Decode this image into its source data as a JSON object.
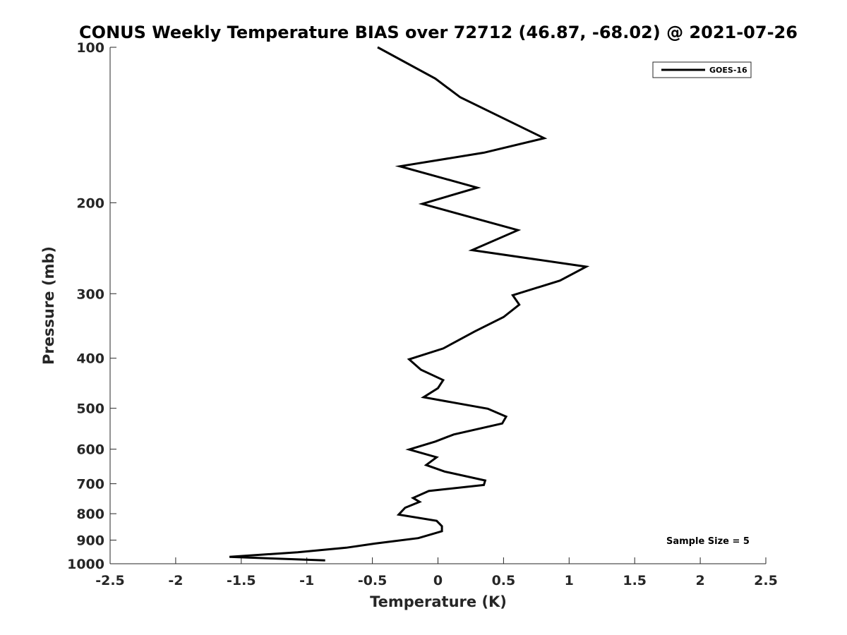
{
  "chart_data": {
    "type": "line",
    "title": "CONUS Weekly Temperature BIAS over 72712 (46.87, -68.02) @ 2021-07-26",
    "xlabel": "Temperature (K)",
    "ylabel": "Pressure (mb)",
    "xlim": [
      -2.5,
      2.5
    ],
    "ylim": [
      1000,
      100
    ],
    "yscale": "log",
    "y_reversed": true,
    "grid": false,
    "legend_position": "top-right",
    "x_ticks": [
      "-2.5",
      "-2",
      "-1.5",
      "-1",
      "-0.5",
      "0",
      "0.5",
      "1",
      "1.5",
      "2",
      "2.5"
    ],
    "x_tick_values": [
      -2.5,
      -2,
      -1.5,
      -1,
      -0.5,
      0,
      0.5,
      1,
      1.5,
      2,
      2.5
    ],
    "y_ticks": [
      "100",
      "200",
      "300",
      "400",
      "500",
      "600",
      "700",
      "800",
      "900",
      "1000"
    ],
    "y_tick_values": [
      100,
      200,
      300,
      400,
      500,
      600,
      700,
      800,
      900,
      1000
    ],
    "series": [
      {
        "name": "GOES-16",
        "color": "#000000",
        "points": [
          {
            "x": -0.46,
            "y": 100
          },
          {
            "x": -0.02,
            "y": 115
          },
          {
            "x": 0.17,
            "y": 125
          },
          {
            "x": 0.81,
            "y": 150
          },
          {
            "x": 0.35,
            "y": 160
          },
          {
            "x": -0.29,
            "y": 170
          },
          {
            "x": 0.3,
            "y": 187
          },
          {
            "x": -0.12,
            "y": 201
          },
          {
            "x": 0.61,
            "y": 226
          },
          {
            "x": 0.26,
            "y": 247
          },
          {
            "x": 1.13,
            "y": 266
          },
          {
            "x": 0.93,
            "y": 283
          },
          {
            "x": 0.57,
            "y": 302
          },
          {
            "x": 0.62,
            "y": 315
          },
          {
            "x": 0.5,
            "y": 333
          },
          {
            "x": 0.28,
            "y": 355
          },
          {
            "x": 0.04,
            "y": 383
          },
          {
            "x": -0.22,
            "y": 402
          },
          {
            "x": -0.13,
            "y": 421
          },
          {
            "x": 0.04,
            "y": 441
          },
          {
            "x": 0.0,
            "y": 457
          },
          {
            "x": -0.11,
            "y": 476
          },
          {
            "x": 0.38,
            "y": 501
          },
          {
            "x": 0.52,
            "y": 519
          },
          {
            "x": 0.49,
            "y": 535
          },
          {
            "x": 0.12,
            "y": 562
          },
          {
            "x": -0.02,
            "y": 580
          },
          {
            "x": -0.22,
            "y": 601
          },
          {
            "x": -0.01,
            "y": 622
          },
          {
            "x": -0.09,
            "y": 644
          },
          {
            "x": 0.05,
            "y": 663
          },
          {
            "x": 0.36,
            "y": 690
          },
          {
            "x": 0.35,
            "y": 704
          },
          {
            "x": -0.07,
            "y": 723
          },
          {
            "x": -0.19,
            "y": 746
          },
          {
            "x": -0.14,
            "y": 759
          },
          {
            "x": -0.25,
            "y": 779
          },
          {
            "x": -0.3,
            "y": 803
          },
          {
            "x": -0.01,
            "y": 826
          },
          {
            "x": 0.03,
            "y": 846
          },
          {
            "x": 0.03,
            "y": 865
          },
          {
            "x": -0.15,
            "y": 892
          },
          {
            "x": -0.48,
            "y": 914
          },
          {
            "x": -0.7,
            "y": 931
          },
          {
            "x": -1.07,
            "y": 950
          },
          {
            "x": -1.59,
            "y": 970
          },
          {
            "x": -1.25,
            "y": 977
          },
          {
            "x": -0.86,
            "y": 985
          }
        ]
      }
    ],
    "annotations": [
      "Sample Size = 5"
    ]
  }
}
